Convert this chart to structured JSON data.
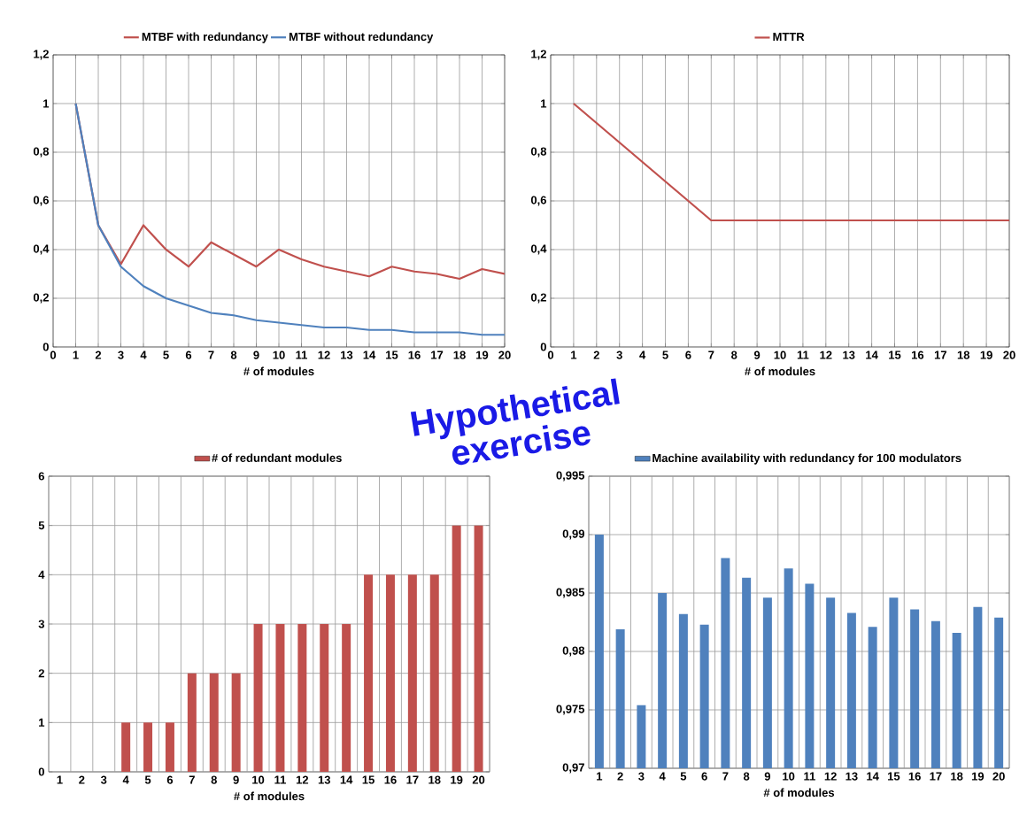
{
  "chart_data": [
    {
      "type": "line",
      "xlabel": "# of modules",
      "x": [
        1,
        2,
        3,
        4,
        5,
        6,
        7,
        8,
        9,
        10,
        11,
        12,
        13,
        14,
        15,
        16,
        17,
        18,
        19,
        20
      ],
      "legend": "top",
      "grid": true,
      "marker": "none",
      "line_style": "solid",
      "xlim": [
        0,
        20
      ],
      "xticks": [
        0,
        1,
        2,
        3,
        4,
        5,
        6,
        7,
        8,
        9,
        10,
        11,
        12,
        13,
        14,
        15,
        16,
        17,
        18,
        19,
        20
      ],
      "ylim": [
        0,
        1.2
      ],
      "yticks": [
        0,
        {
          "value": 0.2,
          "label": "0,2"
        },
        {
          "value": 0.4,
          "label": "0,4"
        },
        {
          "value": 0.6,
          "label": "0,6"
        },
        {
          "value": 0.8,
          "label": "0,8"
        },
        1,
        {
          "value": 1.2,
          "label": "1,2"
        }
      ],
      "series": [
        {
          "name": "MTBF with redundancy",
          "color": "#c0504d",
          "values": [
            1,
            0.5,
            0.34,
            0.5,
            0.4,
            0.33,
            0.43,
            0.38,
            0.33,
            0.4,
            0.36,
            0.33,
            0.31,
            0.29,
            0.33,
            0.31,
            0.3,
            0.28,
            0.32,
            0.3
          ]
        },
        {
          "name": "MTBF without redundancy",
          "color": "#4f81bd",
          "values": [
            1,
            0.5,
            0.33,
            0.25,
            0.2,
            0.17,
            0.14,
            0.13,
            0.11,
            0.1,
            0.09,
            0.08,
            0.08,
            0.07,
            0.07,
            0.06,
            0.06,
            0.06,
            0.05,
            0.05
          ]
        }
      ]
    },
    {
      "type": "line",
      "xlabel": "# of modules",
      "x": [
        1,
        2,
        3,
        4,
        5,
        6,
        7,
        8,
        9,
        10,
        11,
        12,
        13,
        14,
        15,
        16,
        17,
        18,
        19,
        20
      ],
      "legend": "top",
      "grid": true,
      "marker": "none",
      "line_style": "solid",
      "xlim": [
        0,
        20
      ],
      "xticks": [
        0,
        1,
        2,
        3,
        4,
        5,
        6,
        7,
        8,
        9,
        10,
        11,
        12,
        13,
        14,
        15,
        16,
        17,
        18,
        19,
        20
      ],
      "ylim": [
        0,
        1.2
      ],
      "yticks": [
        0,
        {
          "value": 0.2,
          "label": "0,2"
        },
        {
          "value": 0.4,
          "label": "0,4"
        },
        {
          "value": 0.6,
          "label": "0,6"
        },
        {
          "value": 0.8,
          "label": "0,8"
        },
        1,
        {
          "value": 1.2,
          "label": "1,2"
        }
      ],
      "series": [
        {
          "name": "MTTR",
          "color": "#c0504d",
          "values": [
            1,
            0.92,
            0.84,
            0.76,
            0.68,
            0.6,
            0.52,
            0.52,
            0.52,
            0.52,
            0.52,
            0.52,
            0.52,
            0.52,
            0.52,
            0.52,
            0.52,
            0.52,
            0.52,
            0.52
          ]
        }
      ]
    },
    {
      "type": "bar",
      "xlabel": "# of modules",
      "categories": [
        "1",
        "2",
        "3",
        "4",
        "5",
        "6",
        "7",
        "8",
        "9",
        "10",
        "11",
        "12",
        "13",
        "14",
        "15",
        "16",
        "17",
        "18",
        "19",
        "20"
      ],
      "legend": "top",
      "grid": true,
      "ylim": [
        0,
        6
      ],
      "yticks": [
        0,
        1,
        2,
        3,
        4,
        5,
        6
      ],
      "annotations": [
        "Hypothetical exercise"
      ],
      "series": [
        {
          "name": "# of redundant modules",
          "color": "#c0504d",
          "values": [
            0,
            0,
            0,
            1,
            1,
            1,
            2,
            2,
            2,
            3,
            3,
            3,
            3,
            3,
            4,
            4,
            4,
            4,
            5,
            5
          ]
        }
      ]
    },
    {
      "type": "bar",
      "xlabel": "# of modules",
      "categories": [
        "1",
        "2",
        "3",
        "4",
        "5",
        "6",
        "7",
        "8",
        "9",
        "10",
        "11",
        "12",
        "13",
        "14",
        "15",
        "16",
        "17",
        "18",
        "19",
        "20"
      ],
      "legend": "top",
      "grid": true,
      "ylim": [
        0.97,
        0.995
      ],
      "yticks": [
        {
          "value": 0.97,
          "label": "0,97"
        },
        {
          "value": 0.975,
          "label": "0,975"
        },
        {
          "value": 0.98,
          "label": "0,98"
        },
        {
          "value": 0.985,
          "label": "0,985"
        },
        {
          "value": 0.99,
          "label": "0,99"
        },
        {
          "value": 0.995,
          "label": "0,995"
        }
      ],
      "series": [
        {
          "name": "Machine availability with redundancy for 100 modulators",
          "color": "#4f81bd",
          "values": [
            0.99,
            0.9819,
            0.9754,
            0.985,
            0.9832,
            0.9823,
            0.988,
            0.9863,
            0.9846,
            0.9871,
            0.9858,
            0.9846,
            0.9833,
            0.9821,
            0.9846,
            0.9836,
            0.9826,
            0.9816,
            0.9838,
            0.9829
          ]
        }
      ]
    }
  ]
}
